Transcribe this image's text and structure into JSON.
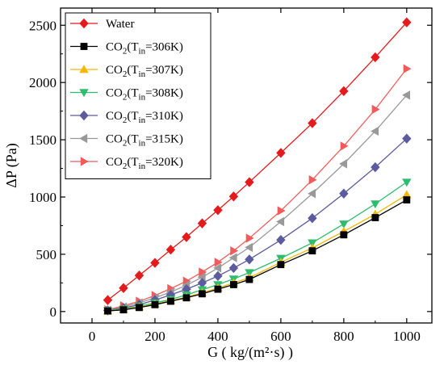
{
  "chart_data": {
    "type": "line",
    "xlabel": "G ( kg/(m²·s) )",
    "ylabel": "ΔP (Pa)",
    "xlim": [
      -100,
      1080
    ],
    "ylim": [
      -100,
      2650
    ],
    "x_ticks": [
      "0",
      "200",
      "400",
      "600",
      "800",
      "1000"
    ],
    "y_ticks": [
      "0",
      "500",
      "1000",
      "1500",
      "2000",
      "2500"
    ],
    "legend_position": "top-left",
    "x": [
      50,
      100,
      150,
      200,
      250,
      300,
      350,
      400,
      450,
      500,
      600,
      700,
      800,
      900,
      1000
    ],
    "series": [
      {
        "name": "Water",
        "marker": "diamond",
        "color": "#e41a1c",
        "values": [
          100,
          205,
          315,
          425,
          540,
          650,
          770,
          885,
          1005,
          1130,
          1385,
          1645,
          1925,
          2220,
          2525
        ]
      },
      {
        "name": "CO₂(Tᵢₙ=306K)",
        "name_main": "CO",
        "name_parts": [
          "2",
          "(T",
          "in",
          "=306K)"
        ],
        "marker": "square",
        "color": "#000000",
        "values": [
          5,
          15,
          35,
          60,
          90,
          120,
          155,
          195,
          235,
          280,
          410,
          530,
          670,
          820,
          975
        ]
      },
      {
        "name": "CO₂(Tᵢₙ=307K)",
        "name_main": "CO",
        "name_parts": [
          "2",
          "(T",
          "in",
          "=307K)"
        ],
        "marker": "triangle-up",
        "color": "#f5b800",
        "values": [
          5,
          18,
          40,
          65,
          95,
          125,
          165,
          205,
          250,
          295,
          430,
          555,
          700,
          850,
          1020
        ]
      },
      {
        "name": "CO₂(Tᵢₙ=308K)",
        "name_main": "CO",
        "name_parts": [
          "2",
          "(T",
          "in",
          "=308K)"
        ],
        "marker": "triangle-down",
        "color": "#2ebd6e",
        "values": [
          8,
          22,
          45,
          75,
          105,
          145,
          190,
          235,
          285,
          340,
          465,
          600,
          765,
          940,
          1130
        ]
      },
      {
        "name": "CO₂(Tᵢₙ=310K)",
        "name_main": "CO",
        "name_parts": [
          "2",
          "(T",
          "in",
          "=310K)"
        ],
        "marker": "diamond",
        "color": "#5b5b9e",
        "values": [
          10,
          30,
          60,
          100,
          145,
          195,
          250,
          310,
          380,
          455,
          625,
          815,
          1030,
          1260,
          1510
        ]
      },
      {
        "name": "CO₂(Tᵢₙ=315K)",
        "name_main": "CO",
        "name_parts": [
          "2",
          "(T",
          "in",
          "=315K)"
        ],
        "marker": "triangle-left",
        "color": "#999999",
        "values": [
          12,
          40,
          75,
          120,
          170,
          230,
          300,
          380,
          470,
          560,
          785,
          1030,
          1290,
          1575,
          1890
        ]
      },
      {
        "name": "CO₂(Tᵢₙ=320K)",
        "name_main": "CO",
        "name_parts": [
          "2",
          "(T",
          "in",
          "=320K)"
        ],
        "marker": "triangle-right",
        "color": "#f25b5b",
        "values": [
          15,
          50,
          90,
          140,
          200,
          265,
          345,
          430,
          530,
          640,
          880,
          1150,
          1445,
          1765,
          2120
        ]
      }
    ]
  }
}
